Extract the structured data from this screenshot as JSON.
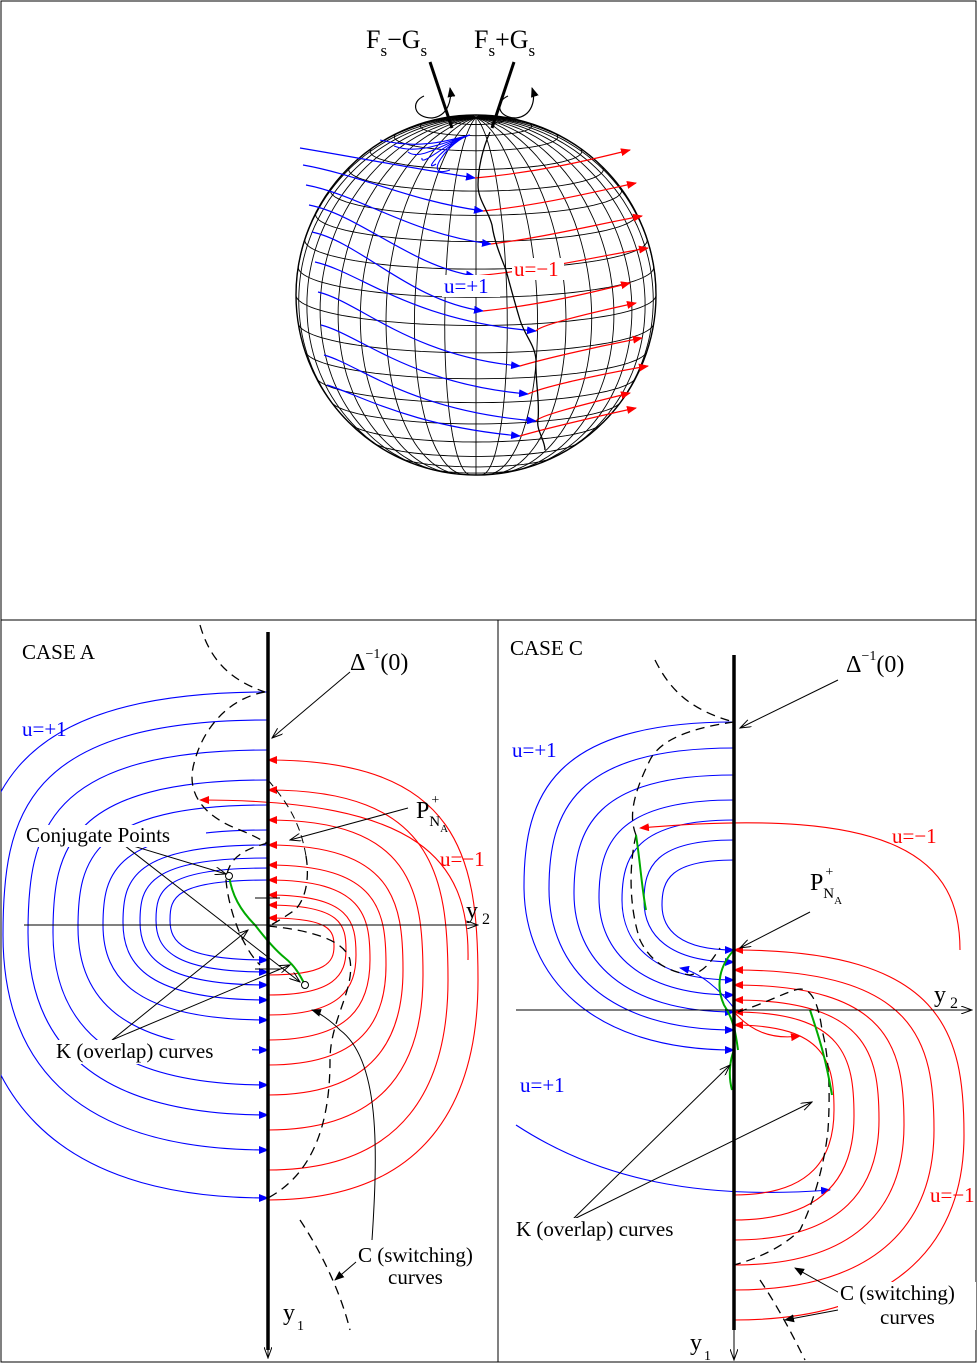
{
  "top": {
    "axis_left": {
      "main": "F",
      "sub1": "s",
      "op": "−G",
      "sub2": "s"
    },
    "axis_right": {
      "main": "F",
      "sub1": "s",
      "op": "+G",
      "sub2": "s"
    },
    "label_plus": "u=+1",
    "label_minus": "u=−1"
  },
  "case_a": {
    "title": "CASE A",
    "delta_main": "Δ",
    "delta_sup": "−1",
    "delta_arg": "(0)",
    "label_plus": "u=+1",
    "label_minus": "u=−1",
    "p_main": "P",
    "p_sub": "N",
    "p_subsub": "A",
    "p_sup": "+",
    "conjugate": "Conjugate Points",
    "y2_main": "y",
    "y2_sub": "2",
    "y1_main": "y",
    "y1_sub": "1",
    "k_curves": "K (overlap) curves",
    "c_line1": "C (switching)",
    "c_line2": "curves"
  },
  "case_c": {
    "title": "CASE C",
    "delta_main": "Δ",
    "delta_sup": "−1",
    "delta_arg": "(0)",
    "label_plus_top": "u=+1",
    "label_minus_top": "u=−1",
    "label_plus_bottom": "u=+1",
    "label_minus_bottom": "u=−1",
    "p_main": "P",
    "p_sub": "N",
    "p_subsub": "A",
    "p_sup": "+",
    "y2_main": "y",
    "y2_sub": "2",
    "y1_main": "y",
    "y1_sub": "1",
    "k_curves": "K (overlap) curves",
    "c_line1": "C (switching)",
    "c_line2": "curves"
  },
  "colors": {
    "plus": "#0000ff",
    "minus": "#ff0000",
    "overlap": "#00aa00",
    "ink": "#000000"
  }
}
